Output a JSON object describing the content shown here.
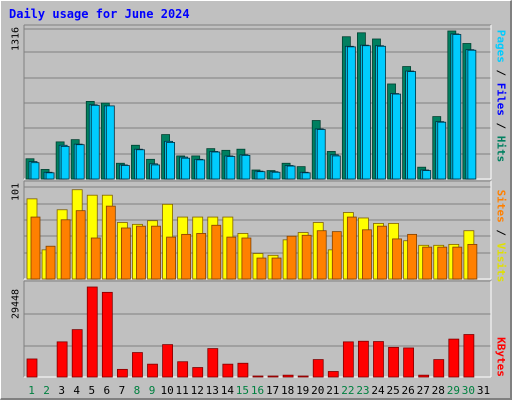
{
  "title": "Daily usage for June 2024",
  "chart_data": {
    "type": "bar",
    "title": "Daily usage for June 2024",
    "categories": [
      "1",
      "2",
      "3",
      "4",
      "5",
      "6",
      "7",
      "8",
      "9",
      "10",
      "11",
      "12",
      "13",
      "14",
      "15",
      "16",
      "17",
      "18",
      "19",
      "20",
      "21",
      "22",
      "23",
      "24",
      "25",
      "26",
      "27",
      "28",
      "29",
      "30",
      "31"
    ],
    "weekend_days": [
      "1",
      "2",
      "8",
      "9",
      "15",
      "16",
      "22",
      "23",
      "29",
      "30"
    ],
    "colors": {
      "pages": "#00ccff",
      "files": "#00c0e0",
      "hits": "#008060",
      "visits": "#ffff00",
      "sites": "#ff8000",
      "kbytes": "#ff0000",
      "weekday_label": "#000000",
      "weekend_label": "#008040"
    },
    "panels": [
      {
        "name": "hits-files-pages",
        "y_max_label": "1316",
        "ylim": [
          0,
          1316
        ],
        "axis_label_parts": [
          {
            "text": "Pages",
            "color": "#00ccff"
          },
          {
            "text": " / ",
            "color": "#000000"
          },
          {
            "text": "Files",
            "color": "#0000ff"
          },
          {
            "text": " / ",
            "color": "#000000"
          },
          {
            "text": "Hits",
            "color": "#008060"
          }
        ],
        "series": [
          {
            "name": "Hits",
            "values": [
              180,
              85,
              330,
              350,
              690,
              675,
              140,
              300,
              175,
              395,
              205,
              205,
              270,
              255,
              265,
              80,
              75,
              140,
              110,
              520,
              245,
              1265,
              1300,
              1245,
              845,
              1000,
              105,
              555,
              1316,
              1205,
              0
            ]
          },
          {
            "name": "Files",
            "values": [
              155,
              60,
              300,
              310,
              660,
              650,
              125,
              265,
              135,
              335,
              195,
              175,
              245,
              205,
              215,
              70,
              65,
              120,
              60,
              445,
              215,
              1180,
              1190,
              1185,
              760,
              960,
              80,
              510,
              1290,
              1150,
              0
            ]
          },
          {
            "name": "Pages",
            "values": [
              145,
              55,
              290,
              305,
              655,
              650,
              120,
              260,
              125,
              325,
              185,
              170,
              240,
              200,
              210,
              65,
              60,
              115,
              55,
              440,
              205,
              1175,
              1185,
              1180,
              755,
              955,
              75,
              505,
              1285,
              1145,
              0
            ]
          }
        ]
      },
      {
        "name": "visits-sites",
        "y_max_label": "101",
        "ylim": [
          0,
          101
        ],
        "axis_label_parts": [
          {
            "text": "Sites",
            "color": "#ff8000"
          },
          {
            "text": " / ",
            "color": "#000000"
          },
          {
            "text": "Visits",
            "color": "#ffff00"
          }
        ],
        "series": [
          {
            "name": "Visits",
            "values": [
              88,
              32,
              76,
              98,
              92,
              92,
              62,
              60,
              64,
              82,
              68,
              68,
              68,
              68,
              50,
              28,
              26,
              43,
              51,
              62,
              32,
              73,
              67,
              61,
              61,
              42,
              37,
              37,
              38,
              53,
              0
            ]
          },
          {
            "name": "Sites",
            "values": [
              68,
              36,
              65,
              75,
              45,
              80,
              56,
              58,
              58,
              46,
              49,
              50,
              59,
              46,
              45,
              23,
              23,
              47,
              48,
              53,
              52,
              68,
              54,
              58,
              44,
              49,
              35,
              35,
              35,
              38,
              0
            ]
          }
        ]
      },
      {
        "name": "kbytes",
        "y_max_label": "29448",
        "ylim": [
          0,
          29448
        ],
        "axis_label_parts": [
          {
            "text": "KBytes",
            "color": "#ff0000"
          }
        ],
        "series": [
          {
            "name": "KBytes",
            "values": [
              5900,
              0,
              11500,
              15500,
              29448,
              27700,
              2500,
              8000,
              4200,
              10600,
              5000,
              3100,
              9300,
              4200,
              4500,
              200,
              200,
              600,
              200,
              5700,
              1800,
              11500,
              11700,
              11600,
              9700,
              9500,
              600,
              5700,
              12400,
              13900,
              0
            ]
          }
        ]
      }
    ]
  }
}
